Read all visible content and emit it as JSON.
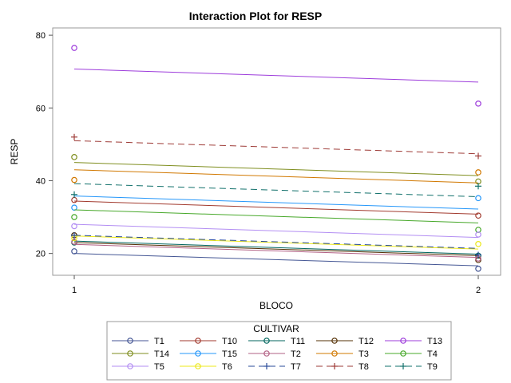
{
  "chart_data": {
    "type": "line",
    "title": "Interaction Plot for RESP",
    "xlabel": "BLOCO",
    "ylabel": "RESP",
    "x_categories": [
      "1",
      "2"
    ],
    "xlim": [
      1,
      2
    ],
    "ylim": [
      14,
      82
    ],
    "y_ticks": [
      20,
      40,
      60,
      80
    ],
    "legend_title": "CULTIVAR",
    "legend_position": "bottom",
    "series": [
      {
        "name": "T1",
        "color": "#445694",
        "dash": false,
        "marker": "circle",
        "points": [
          20.6,
          15.8
        ],
        "fit": [
          20.0,
          16.6
        ]
      },
      {
        "name": "T10",
        "color": "#A23A2E",
        "dash": false,
        "marker": "circle",
        "points": [
          34.7,
          30.4
        ],
        "fit": [
          34.4,
          30.8
        ]
      },
      {
        "name": "T11",
        "color": "#01665E",
        "dash": false,
        "marker": "circle",
        "points": [
          23.0,
          19.4
        ],
        "fit": [
          23.4,
          19.8
        ]
      },
      {
        "name": "T12",
        "color": "#543005",
        "dash": false,
        "marker": "circle",
        "points": [
          25.0,
          18.2
        ],
        "fit": [
          23.0,
          19.4
        ]
      },
      {
        "name": "T13",
        "color": "#9D3CDB",
        "dash": false,
        "marker": "circle",
        "points": [
          76.5,
          61.2
        ],
        "fit": [
          70.7,
          67.1
        ]
      },
      {
        "name": "T14",
        "color": "#7F8E1F",
        "dash": false,
        "marker": "circle",
        "points": [
          46.5,
          39.8
        ],
        "fit": [
          45.0,
          41.4
        ]
      },
      {
        "name": "T15",
        "color": "#2597FA",
        "dash": false,
        "marker": "circle",
        "points": [
          32.6,
          35.2
        ],
        "fit": [
          35.8,
          32.2
        ]
      },
      {
        "name": "T2",
        "color": "#B26084",
        "dash": false,
        "marker": "circle",
        "points": [
          23.2,
          18.6
        ],
        "fit": [
          22.5,
          18.9
        ]
      },
      {
        "name": "T3",
        "color": "#D17800",
        "dash": false,
        "marker": "circle",
        "points": [
          40.2,
          42.3
        ],
        "fit": [
          43.0,
          39.4
        ]
      },
      {
        "name": "T4",
        "color": "#47A82A",
        "dash": false,
        "marker": "circle",
        "points": [
          30.0,
          26.5
        ],
        "fit": [
          32.0,
          28.4
        ]
      },
      {
        "name": "T5",
        "color": "#B38EF3",
        "dash": false,
        "marker": "circle",
        "points": [
          27.5,
          25.2
        ],
        "fit": [
          28.0,
          24.4
        ]
      },
      {
        "name": "T6",
        "color": "#ECE81A",
        "dash": false,
        "marker": "circle",
        "points": [
          24.2,
          22.6
        ],
        "fit": [
          24.8,
          21.2
        ]
      },
      {
        "name": "T7",
        "color": "#2A4B9A",
        "dash": true,
        "marker": "plus",
        "points": [
          25.0,
          19.6
        ],
        "fit": [
          25.0,
          21.4
        ]
      },
      {
        "name": "T8",
        "color": "#9E3B37",
        "dash": true,
        "marker": "plus",
        "points": [
          52.0,
          46.8
        ],
        "fit": [
          51.0,
          47.4
        ]
      },
      {
        "name": "T9",
        "color": "#11706B",
        "dash": true,
        "marker": "plus",
        "points": [
          36.2,
          38.5
        ],
        "fit": [
          39.2,
          35.6
        ]
      }
    ]
  }
}
